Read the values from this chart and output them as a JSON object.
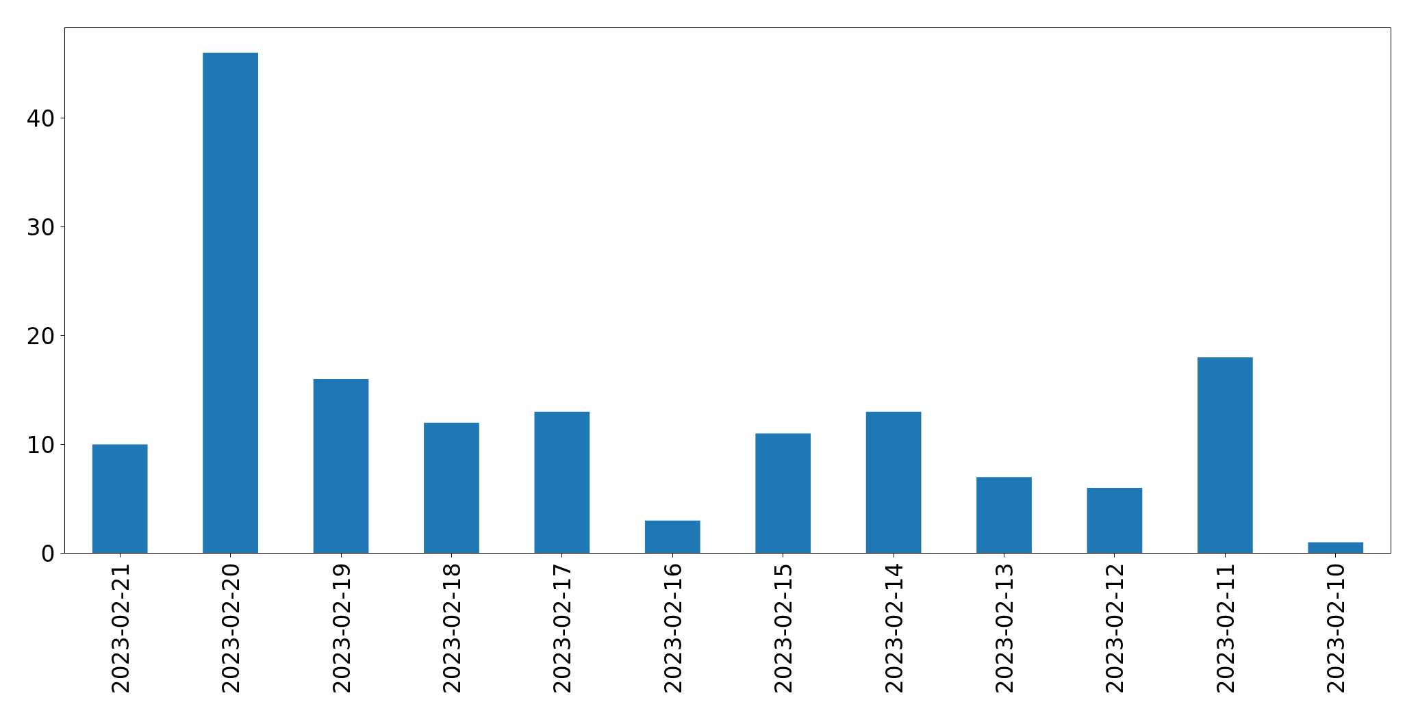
{
  "chart_data": {
    "type": "bar",
    "categories": [
      "2023-02-21",
      "2023-02-20",
      "2023-02-19",
      "2023-02-18",
      "2023-02-17",
      "2023-02-16",
      "2023-02-15",
      "2023-02-14",
      "2023-02-13",
      "2023-02-12",
      "2023-02-11",
      "2023-02-10"
    ],
    "values": [
      10,
      46,
      16,
      12,
      13,
      3,
      11,
      13,
      7,
      6,
      18,
      1
    ],
    "color": "#1f77b4",
    "ylim": [
      0,
      48.3
    ],
    "yticks": [
      0,
      10,
      20,
      30,
      40
    ]
  }
}
